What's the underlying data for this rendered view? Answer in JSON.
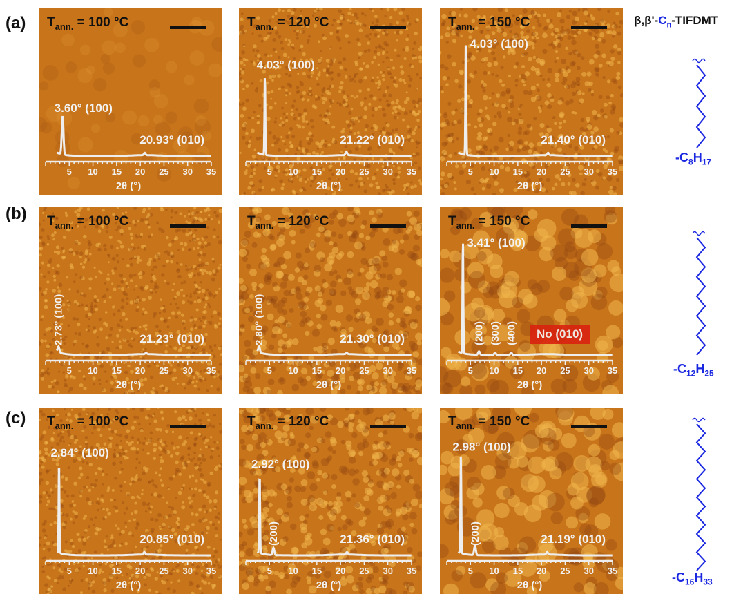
{
  "figure": {
    "compound": {
      "prefix": "β,β'-",
      "core": "C",
      "core_sub": "n",
      "suffix": "-TIFDMT"
    },
    "rows": [
      {
        "label": "(a)",
        "chain": {
          "formula_pre": "-C",
          "c_sub": "8",
          "h": "H",
          "h_sub": "17",
          "carbons": 8
        },
        "panels": [
          {
            "temp": "= 100 °C",
            "texture": "smooth",
            "peaks": [
              {
                "label": "3.60° (100)",
                "two_theta": 3.6,
                "rel_height": 0.33,
                "vertical": false
              },
              {
                "label": "20.93° (010)",
                "two_theta": 20.93,
                "rel_height": 0.02,
                "vertical": false
              }
            ]
          },
          {
            "temp": "= 120 °C",
            "texture": "grain-fine",
            "peaks": [
              {
                "label": "4.03° (100)",
                "two_theta": 4.03,
                "rel_height": 0.7,
                "vertical": false
              },
              {
                "label": "21.22° (010)",
                "two_theta": 21.22,
                "rel_height": 0.03,
                "vertical": false
              }
            ]
          },
          {
            "temp": "= 150 °C",
            "texture": "grain-medium",
            "peaks": [
              {
                "label": "4.03° (100)",
                "two_theta": 4.03,
                "rel_height": 1.0,
                "vertical": false
              },
              {
                "label": "21.40° (010)",
                "two_theta": 21.4,
                "rel_height": 0.02,
                "vertical": false
              }
            ]
          }
        ]
      },
      {
        "label": "(b)",
        "chain": {
          "formula_pre": "-C",
          "c_sub": "12",
          "h": "H",
          "h_sub": "25",
          "carbons": 12
        },
        "panels": [
          {
            "temp": "= 100 °C",
            "texture": "grain-fine",
            "peaks": [
              {
                "label": "2.73° (100)",
                "two_theta": 2.73,
                "rel_height": 0.05,
                "vertical": true
              },
              {
                "label": "21.23° (010)",
                "two_theta": 21.23,
                "rel_height": 0.01,
                "vertical": false
              }
            ]
          },
          {
            "temp": "= 120 °C",
            "texture": "grain-coarse",
            "peaks": [
              {
                "label": "2.80° (100)",
                "two_theta": 2.8,
                "rel_height": 0.05,
                "vertical": true
              },
              {
                "label": "21.30° (010)",
                "two_theta": 21.3,
                "rel_height": 0.01,
                "vertical": false
              }
            ]
          },
          {
            "temp": "= 150 °C",
            "texture": "grain-large",
            "peaks": [
              {
                "label": "3.41° (100)",
                "two_theta": 3.41,
                "rel_height": 1.0,
                "vertical": false
              },
              {
                "label": "(200)",
                "two_theta": 6.8,
                "rel_height": 0.03,
                "vertical": true
              },
              {
                "label": "(300)",
                "two_theta": 10.2,
                "rel_height": 0.02,
                "vertical": true
              },
              {
                "label": "(400)",
                "two_theta": 13.6,
                "rel_height": 0.02,
                "vertical": true
              }
            ],
            "note": "No (010)"
          }
        ]
      },
      {
        "label": "(c)",
        "chain": {
          "formula_pre": "-C",
          "c_sub": "16",
          "h": "H",
          "h_sub": "33",
          "carbons": 16
        },
        "panels": [
          {
            "temp": "= 100 °C",
            "texture": "grain-fine",
            "peaks": [
              {
                "label": "2.84° (100)",
                "two_theta": 2.84,
                "rel_height": 0.8,
                "vertical": false
              },
              {
                "label": "20.85° (010)",
                "two_theta": 20.85,
                "rel_height": 0.02,
                "vertical": false
              }
            ]
          },
          {
            "temp": "= 120 °C",
            "texture": "grain-coarse",
            "peaks": [
              {
                "label": "2.92° (100)",
                "two_theta": 2.92,
                "rel_height": 0.7,
                "vertical": false
              },
              {
                "label": "(200)",
                "two_theta": 5.84,
                "rel_height": 0.06,
                "vertical": true
              },
              {
                "label": "21.36° (010)",
                "two_theta": 21.36,
                "rel_height": 0.02,
                "vertical": false
              }
            ]
          },
          {
            "temp": "= 150 °C",
            "texture": "grain-large",
            "peaks": [
              {
                "label": "2.98° (100)",
                "two_theta": 2.98,
                "rel_height": 0.85,
                "vertical": false
              },
              {
                "label": "(200)",
                "two_theta": 5.96,
                "rel_height": 0.08,
                "vertical": true
              },
              {
                "label": "21.19° (010)",
                "two_theta": 21.19,
                "rel_height": 0.02,
                "vertical": false
              }
            ]
          }
        ]
      }
    ],
    "axis": {
      "xlabel": "2θ (°)",
      "ticks": [
        5,
        10,
        15,
        20,
        25,
        30,
        35
      ],
      "xlim": [
        0,
        35
      ]
    },
    "temp_prefix": "T",
    "temp_sub": "ann.",
    "colors": {
      "afm_base": "#c8741a",
      "afm_light": "#f0b64c",
      "afm_dark": "#8e4510",
      "trace": "#eeeeee",
      "chain": "#1a27e0"
    }
  }
}
